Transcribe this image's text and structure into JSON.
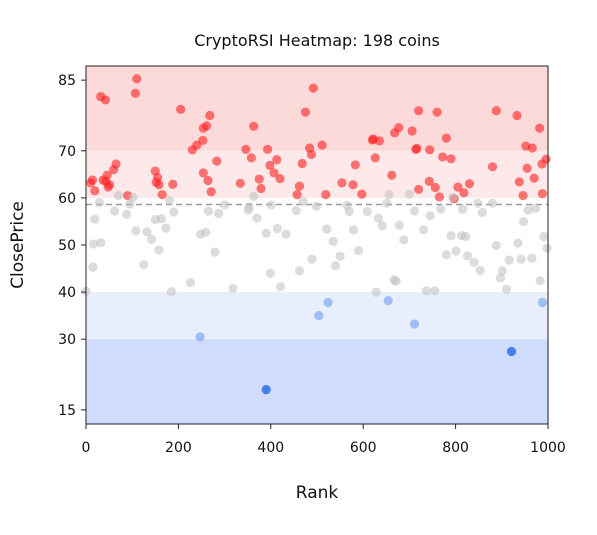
{
  "chart_data": {
    "type": "scatter",
    "title": "CryptoRSI Heatmap: 198 coins",
    "xlabel": "Rank",
    "ylabel": "ClosePrice",
    "xlim": [
      0,
      1000
    ],
    "ylim": [
      12,
      88
    ],
    "x_ticks": [
      0,
      200,
      400,
      600,
      800,
      1000
    ],
    "y_ticks": [
      15,
      30,
      40,
      50,
      60,
      70,
      85
    ],
    "grid": false,
    "legend": "none",
    "threshold_line": 58.6,
    "bands": [
      {
        "from": 12,
        "to": 30,
        "color": "#cfdcfb"
      },
      {
        "from": 30,
        "to": 40,
        "color": "#e9eefc"
      },
      {
        "from": 60,
        "to": 70,
        "color": "#fde9ea"
      },
      {
        "from": 70,
        "to": 88,
        "color": "#fddada"
      }
    ],
    "colors": {
      "overbought": "#ff1e1e",
      "neutral": "#bfbfbf",
      "oversold_light": "#6e9cf2",
      "oversold_deep": "#2d6ee6",
      "threshold": "#999999"
    },
    "series": [
      {
        "group": "overbought",
        "points": [
          [
            110,
            85.3
          ],
          [
            32,
            81.5
          ],
          [
            42,
            80.8
          ],
          [
            107,
            82.2
          ],
          [
            492,
            83.3
          ],
          [
            205,
            78.8
          ],
          [
            268,
            77.5
          ],
          [
            261,
            75.3
          ],
          [
            254,
            74.8
          ],
          [
            363,
            75.2
          ],
          [
            475,
            78.2
          ],
          [
            888,
            78.5
          ],
          [
            933,
            77.5
          ],
          [
            720,
            78.5
          ],
          [
            760,
            78.2
          ],
          [
            982,
            74.8
          ],
          [
            706,
            74.2
          ],
          [
            780,
            72.7
          ],
          [
            620,
            72.3
          ],
          [
            635,
            72.1
          ],
          [
            622,
            72.5
          ],
          [
            668,
            73.8
          ],
          [
            677,
            74.9
          ],
          [
            253,
            72.2
          ],
          [
            240,
            71.2
          ],
          [
            346,
            70.3
          ],
          [
            484,
            70.6
          ],
          [
            511,
            71.2
          ],
          [
            744,
            70.2
          ],
          [
            714,
            70.3
          ],
          [
            716,
            70.5
          ],
          [
            952,
            71.0
          ],
          [
            966,
            70.6
          ],
          [
            230,
            70.2
          ],
          [
            90,
            60.5
          ],
          [
            14,
            63.8
          ],
          [
            10,
            63.2
          ],
          [
            19,
            61.5
          ],
          [
            46,
            64.8
          ],
          [
            43,
            63.5
          ],
          [
            48,
            62.3
          ],
          [
            37,
            63.8
          ],
          [
            51,
            62.8
          ],
          [
            60,
            66.0
          ],
          [
            65,
            67.2
          ],
          [
            150,
            65.7
          ],
          [
            152,
            63.3
          ],
          [
            155,
            64.3
          ],
          [
            158,
            62.8
          ],
          [
            165,
            60.7
          ],
          [
            188,
            62.9
          ],
          [
            254,
            65.3
          ],
          [
            264,
            63.7
          ],
          [
            271,
            61.3
          ],
          [
            283,
            67.8
          ],
          [
            334,
            63.1
          ],
          [
            358,
            68.5
          ],
          [
            375,
            64.0
          ],
          [
            379,
            62.0
          ],
          [
            393,
            70.3
          ],
          [
            398,
            66.9
          ],
          [
            407,
            65.3
          ],
          [
            413,
            68.1
          ],
          [
            420,
            64.1
          ],
          [
            457,
            60.7
          ],
          [
            462,
            62.5
          ],
          [
            468,
            67.3
          ],
          [
            488,
            69.2
          ],
          [
            519,
            60.7
          ],
          [
            554,
            63.2
          ],
          [
            578,
            62.8
          ],
          [
            583,
            67.0
          ],
          [
            597,
            60.8
          ],
          [
            626,
            68.5
          ],
          [
            662,
            64.8
          ],
          [
            720,
            61.8
          ],
          [
            743,
            63.5
          ],
          [
            756,
            62.2
          ],
          [
            765,
            60.2
          ],
          [
            772,
            68.7
          ],
          [
            790,
            68.3
          ],
          [
            797,
            59.8
          ],
          [
            805,
            62.3
          ],
          [
            818,
            61.1
          ],
          [
            830,
            63.0
          ],
          [
            880,
            66.6
          ],
          [
            938,
            63.4
          ],
          [
            946,
            60.5
          ],
          [
            955,
            66.3
          ],
          [
            970,
            64.2
          ],
          [
            987,
            67.2
          ],
          [
            988,
            60.9
          ],
          [
            996,
            68.2
          ]
        ]
      },
      {
        "group": "neutral",
        "points": [
          [
            0,
            40.2
          ],
          [
            15,
            45.3
          ],
          [
            16,
            50.2
          ],
          [
            19,
            55.5
          ],
          [
            29,
            59.0
          ],
          [
            32,
            50.5
          ],
          [
            62,
            57.2
          ],
          [
            70,
            60.5
          ],
          [
            88,
            56.5
          ],
          [
            95,
            58.7
          ],
          [
            102,
            60.1
          ],
          [
            108,
            53.0
          ],
          [
            125,
            45.8
          ],
          [
            132,
            52.8
          ],
          [
            142,
            51.2
          ],
          [
            150,
            55.4
          ],
          [
            158,
            48.9
          ],
          [
            163,
            55.6
          ],
          [
            173,
            53.6
          ],
          [
            181,
            59.4
          ],
          [
            185,
            40.1
          ],
          [
            190,
            57.0
          ],
          [
            226,
            42.0
          ],
          [
            248,
            52.3
          ],
          [
            259,
            52.7
          ],
          [
            265,
            57.2
          ],
          [
            279,
            48.5
          ],
          [
            287,
            56.7
          ],
          [
            300,
            58.5
          ],
          [
            318,
            40.8
          ],
          [
            351,
            57.4
          ],
          [
            353,
            58.1
          ],
          [
            363,
            60.3
          ],
          [
            370,
            55.7
          ],
          [
            390,
            52.5
          ],
          [
            399,
            44.0
          ],
          [
            401,
            58.5
          ],
          [
            414,
            53.5
          ],
          [
            421,
            41.1
          ],
          [
            433,
            52.3
          ],
          [
            455,
            57.3
          ],
          [
            462,
            44.5
          ],
          [
            470,
            59.2
          ],
          [
            489,
            47.0
          ],
          [
            499,
            58.2
          ],
          [
            521,
            53.4
          ],
          [
            535,
            50.8
          ],
          [
            540,
            45.6
          ],
          [
            550,
            47.6
          ],
          [
            565,
            58.4
          ],
          [
            570,
            57.1
          ],
          [
            579,
            53.2
          ],
          [
            590,
            48.8
          ],
          [
            609,
            57.1
          ],
          [
            628,
            40.0
          ],
          [
            633,
            55.7
          ],
          [
            641,
            54.1
          ],
          [
            651,
            58.9
          ],
          [
            656,
            60.7
          ],
          [
            667,
            42.6
          ],
          [
            671,
            42.3
          ],
          [
            678,
            54.2
          ],
          [
            688,
            51.1
          ],
          [
            700,
            60.8
          ],
          [
            711,
            57.2
          ],
          [
            731,
            53.2
          ],
          [
            737,
            40.3
          ],
          [
            745,
            56.2
          ],
          [
            755,
            40.3
          ],
          [
            768,
            57.6
          ],
          [
            780,
            47.9
          ],
          [
            790,
            52.0
          ],
          [
            794,
            60.1
          ],
          [
            801,
            48.7
          ],
          [
            813,
            52.0
          ],
          [
            815,
            57.6
          ],
          [
            822,
            51.8
          ],
          [
            826,
            47.7
          ],
          [
            840,
            46.3
          ],
          [
            848,
            58.9
          ],
          [
            853,
            44.6
          ],
          [
            858,
            56.9
          ],
          [
            880,
            58.9
          ],
          [
            888,
            49.9
          ],
          [
            897,
            43.0
          ],
          [
            901,
            44.5
          ],
          [
            910,
            40.6
          ],
          [
            916,
            46.8
          ],
          [
            935,
            50.4
          ],
          [
            942,
            47.0
          ],
          [
            947,
            55.0
          ],
          [
            957,
            57.4
          ],
          [
            965,
            47.2
          ],
          [
            973,
            57.8
          ],
          [
            983,
            42.4
          ],
          [
            991,
            51.8
          ],
          [
            998,
            49.3
          ]
        ]
      },
      {
        "group": "oversold",
        "points": [
          [
            390,
            19.3,
            "deep"
          ],
          [
            921,
            27.4,
            "deep"
          ],
          [
            247,
            30.5,
            "light"
          ],
          [
            504,
            35.0,
            "light"
          ],
          [
            524,
            37.8,
            "light"
          ],
          [
            654,
            38.2,
            "light"
          ],
          [
            711,
            33.2,
            "light"
          ],
          [
            988,
            37.8,
            "light"
          ]
        ]
      }
    ]
  }
}
